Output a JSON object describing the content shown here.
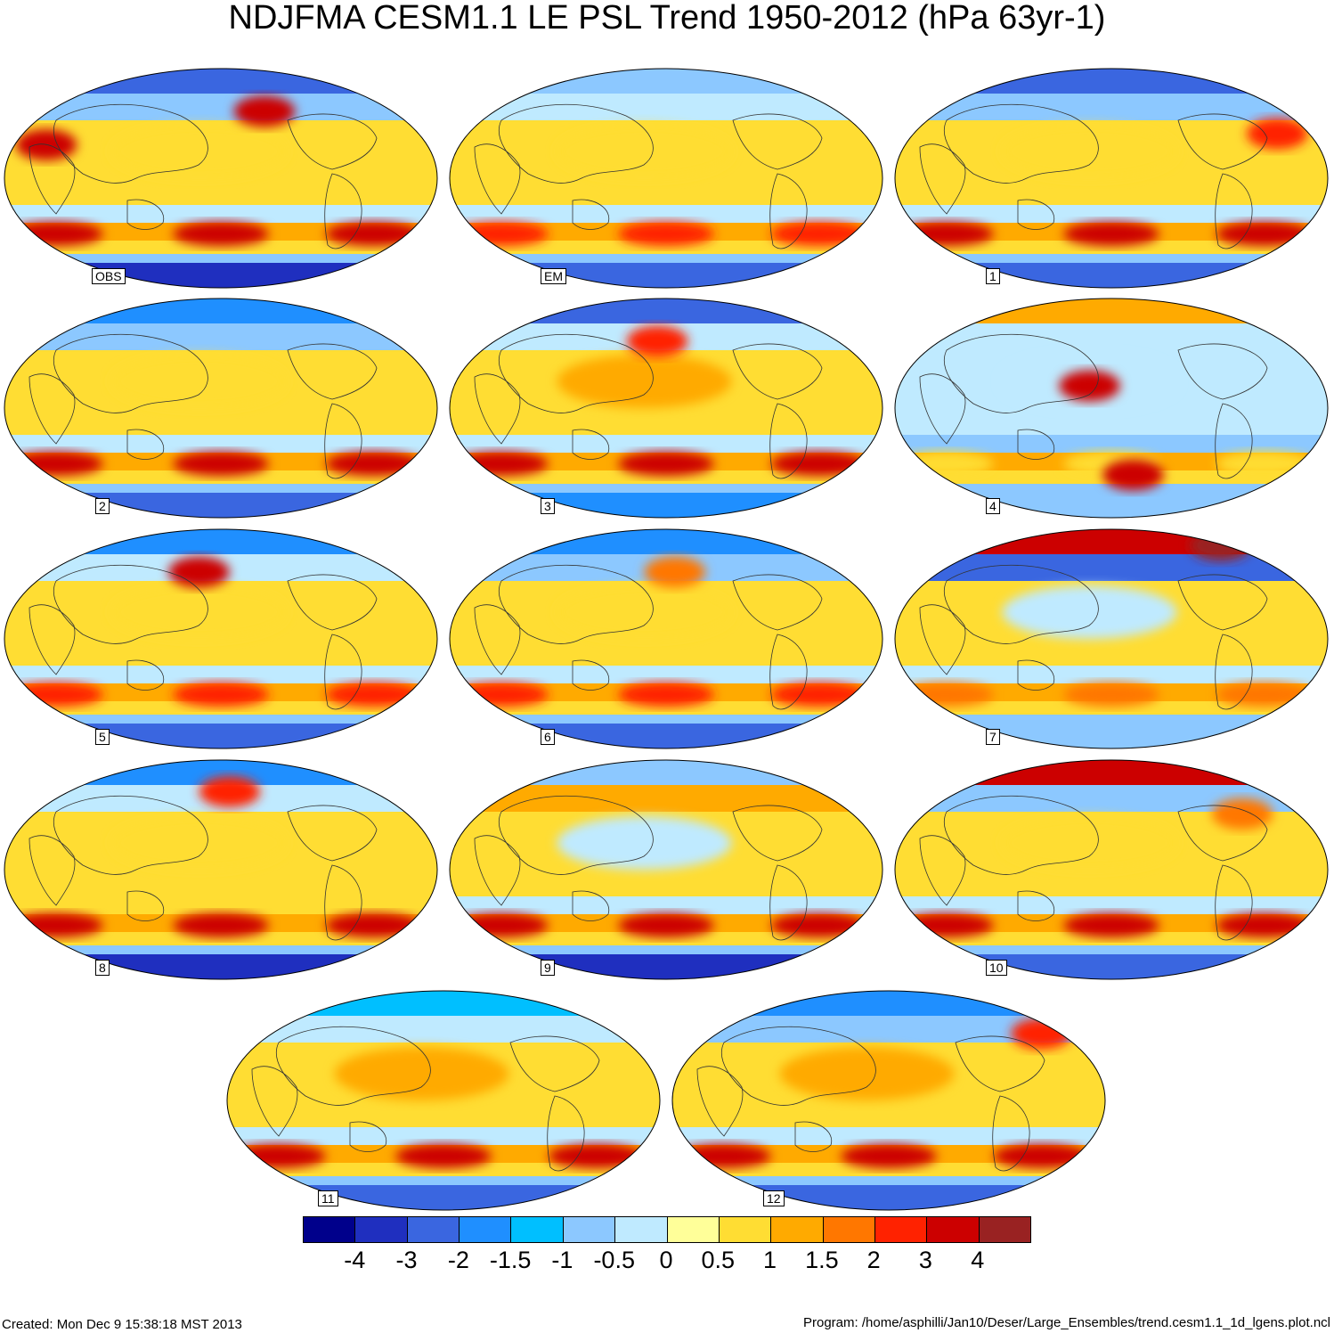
{
  "title": "NDJFMA CESM1.1 LE PSL Trend 1950-2012 (hPa 63yr-1)",
  "panels": [
    {
      "label": "OBS",
      "arctic": -3,
      "mid_n": -1,
      "pac_n": 0.5,
      "tropics": 0.5,
      "mid_s": -0.5,
      "so_high": 3,
      "so_low": -4,
      "hot": [
        {
          "lon": 0.6,
          "lat": 0.3,
          "v": 3
        },
        {
          "lon": 0.1,
          "lat": 0.15,
          "v": 3
        }
      ]
    },
    {
      "label": "EM",
      "arctic": -1,
      "mid_n": -0.5,
      "pac_n": 0.5,
      "tropics": 0.5,
      "mid_s": -0.5,
      "so_high": 2,
      "so_low": -3,
      "hot": []
    },
    {
      "label": "1",
      "arctic": -3,
      "mid_n": -1,
      "pac_n": 0.5,
      "tropics": 0.5,
      "mid_s": -0.5,
      "so_high": 3,
      "so_low": -3,
      "hot": [
        {
          "lon": 0.88,
          "lat": 0.2,
          "v": 2
        }
      ]
    },
    {
      "label": "2",
      "arctic": -2,
      "mid_n": -1,
      "pac_n": 0.5,
      "tropics": 0.5,
      "mid_s": -0.5,
      "so_high": 3,
      "so_low": -3,
      "hot": []
    },
    {
      "label": "3",
      "arctic": -3,
      "mid_n": -0.5,
      "pac_n": 1,
      "tropics": 0.5,
      "mid_s": -0.5,
      "so_high": 3,
      "so_low": -2,
      "hot": [
        {
          "lon": 0.48,
          "lat": 0.3,
          "v": 2
        }
      ]
    },
    {
      "label": "4",
      "arctic": 1,
      "mid_n": -0.5,
      "pac_n": -0.5,
      "tropics": -0.5,
      "mid_s": -1,
      "so_high": 0.5,
      "so_low": -1,
      "hot": [
        {
          "lon": 0.45,
          "lat": 0.1,
          "v": 3
        },
        {
          "lon": 0.55,
          "lat": -0.3,
          "v": 3
        }
      ]
    },
    {
      "label": "5",
      "arctic": -2,
      "mid_n": -0.5,
      "pac_n": 0.5,
      "tropics": 0.5,
      "mid_s": -0.5,
      "so_high": 2,
      "so_low": -3,
      "hot": [
        {
          "lon": 0.45,
          "lat": 0.3,
          "v": 3
        }
      ]
    },
    {
      "label": "6",
      "arctic": -2,
      "mid_n": -1,
      "pac_n": 0.5,
      "tropics": 0.5,
      "mid_s": -0.5,
      "so_high": 2,
      "so_low": -3,
      "hot": [
        {
          "lon": 0.52,
          "lat": 0.3,
          "v": 1.5
        }
      ]
    },
    {
      "label": "7",
      "arctic": 3,
      "mid_n": -3,
      "pac_n": -0.5,
      "tropics": 0.5,
      "mid_s": -0.5,
      "so_high": 1.5,
      "so_low": -1,
      "hot": [
        {
          "lon": 0.75,
          "lat": 0.42,
          "v": 4
        }
      ]
    },
    {
      "label": "8",
      "arctic": -2,
      "mid_n": -0.5,
      "pac_n": 0.5,
      "tropics": 0.5,
      "mid_s": 0.5,
      "so_high": 3,
      "so_low": -4,
      "hot": [
        {
          "lon": 0.52,
          "lat": 0.35,
          "v": 2
        }
      ]
    },
    {
      "label": "9",
      "arctic": -1,
      "mid_n": 1,
      "pac_n": -0.5,
      "tropics": 0.5,
      "mid_s": -0.5,
      "so_high": 3,
      "so_low": -4,
      "hot": []
    },
    {
      "label": "10",
      "arctic": 3,
      "mid_n": -1,
      "pac_n": 0.5,
      "tropics": 0.5,
      "mid_s": -0.5,
      "so_high": 3,
      "so_low": -3,
      "hot": [
        {
          "lon": 0.8,
          "lat": 0.25,
          "v": 1.5
        }
      ]
    },
    {
      "label": "11",
      "arctic": -1.5,
      "mid_n": -0.5,
      "pac_n": 1,
      "tropics": 0.5,
      "mid_s": -0.5,
      "so_high": 3,
      "so_low": -3,
      "hot": []
    },
    {
      "label": "12",
      "arctic": -2,
      "mid_n": -1,
      "pac_n": 1,
      "tropics": 0.5,
      "mid_s": -0.5,
      "so_high": 3,
      "so_low": -3,
      "hot": [
        {
          "lon": 0.85,
          "lat": 0.3,
          "v": 2
        }
      ]
    }
  ],
  "colorbar": {
    "colors": [
      "#00008b",
      "#1f2fbf",
      "#3a66e0",
      "#1f8fff",
      "#00bfff",
      "#8cc8ff",
      "#bfeaff",
      "#ffff99",
      "#ffdd33",
      "#ffaa00",
      "#ff7700",
      "#ff2200",
      "#cc0000",
      "#992222"
    ],
    "ticks": [
      "-4",
      "-3",
      "-2",
      "-1.5",
      "-1",
      "-0.5",
      "0",
      "0.5",
      "1",
      "1.5",
      "2",
      "3",
      "4"
    ]
  },
  "footer": {
    "created": "Created: Mon Dec  9 15:38:18 MST 2013",
    "program": "Program: /home/asphilli/Jan10/Deser/Large_Ensembles/trend.cesm1.1_1d_lgens.plot.ncl"
  }
}
